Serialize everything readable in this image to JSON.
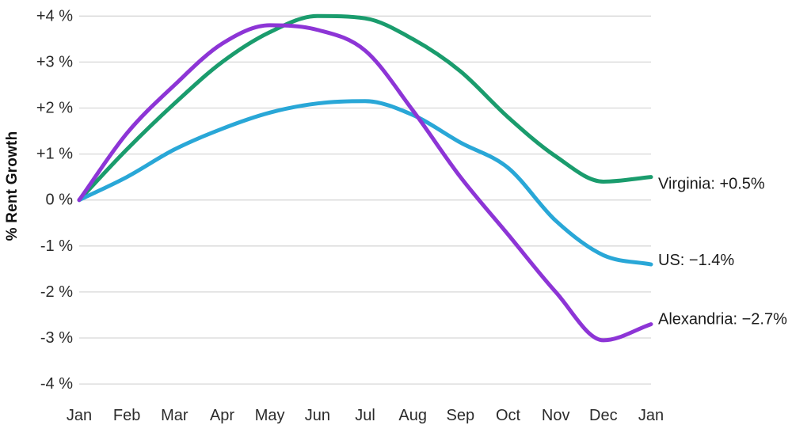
{
  "chart_data": {
    "type": "line",
    "title": "",
    "xlabel": "",
    "ylabel": "% Rent Growth",
    "ylim": [
      -4,
      4
    ],
    "grid": true,
    "legend_position": "right-end-labels",
    "x_tick_labels": [
      "Jan",
      "Feb",
      "Mar",
      "Apr",
      "May",
      "Jun",
      "Jul",
      "Aug",
      "Sep",
      "Oct",
      "Nov",
      "Dec",
      "Jan"
    ],
    "y_tick_labels": [
      "+4 %",
      "+3 %",
      "+2 %",
      "+1 %",
      "0 %",
      "-1 %",
      "-2 %",
      "-3 %",
      "-4 %"
    ],
    "y_tick_values": [
      4,
      3,
      2,
      1,
      0,
      -1,
      -2,
      -3,
      -4
    ],
    "series": [
      {
        "name": "Virginia",
        "end_label": "Virginia: +0.5%",
        "end_value": "+0.5%",
        "color": "#1a9c6d",
        "values": [
          0,
          1.1,
          2.1,
          3.0,
          3.65,
          4.0,
          3.95,
          3.5,
          2.8,
          1.8,
          0.95,
          0.4,
          0.5
        ]
      },
      {
        "name": "US",
        "end_label": "US: −1.4%",
        "end_value": "−1.4%",
        "color": "#29a7d7",
        "values": [
          0,
          0.5,
          1.1,
          1.55,
          1.9,
          2.1,
          2.15,
          1.85,
          1.25,
          0.7,
          -0.45,
          -1.2,
          -1.4
        ]
      },
      {
        "name": "Alexandria",
        "end_label": "Alexandria: −2.7%",
        "end_value": "−2.7%",
        "color": "#8d35d6",
        "values": [
          0,
          1.45,
          2.5,
          3.4,
          3.8,
          3.7,
          3.25,
          1.95,
          0.5,
          -0.75,
          -2.0,
          -3.05,
          -2.7
        ]
      }
    ],
    "colors": {
      "grid": "#d7d7d7",
      "axis_text": "#2b2b2b",
      "end_label_text": "#1a1a1a",
      "background": "#ffffff"
    }
  }
}
